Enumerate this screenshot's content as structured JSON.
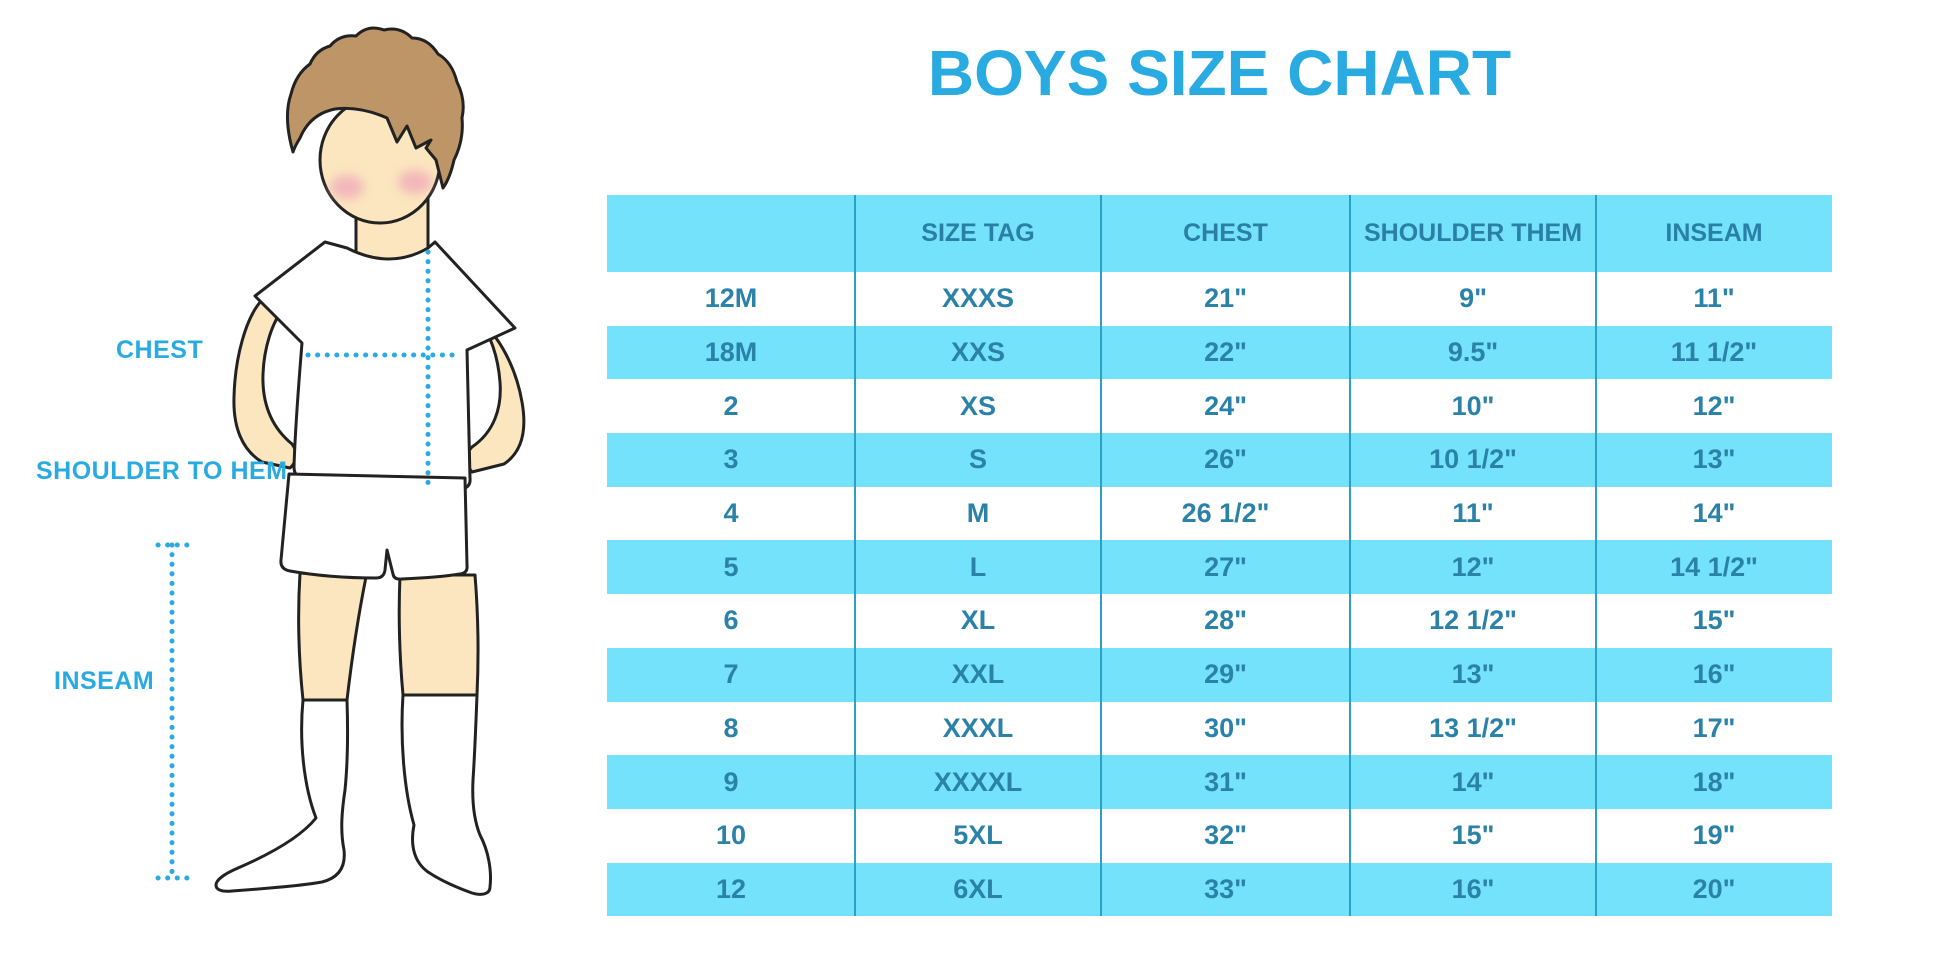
{
  "title": "BOYS SIZE CHART",
  "figure": {
    "labels": {
      "chest": "CHEST",
      "shoulder_to_hem": "SHOULDER TO HEM",
      "inseam": "INSEAM"
    },
    "description": "cartoon boy with brown hair, white t-shirt, white shorts and knee socks; dotted blue measurement lines for chest, shoulder-to-hem and inseam"
  },
  "colors": {
    "accent_blue": "#29ABE2",
    "table_row_blue": "#74E2FB",
    "table_text": "#2B82A8",
    "header_text": "#2A7FA6",
    "divider_blue": "#2AA0CB",
    "skin": "#FBE6BF",
    "hair": "#BD9566",
    "blush": "#F0A8BA",
    "outline": "#222222"
  },
  "chart_data": {
    "type": "table",
    "title": "BOYS SIZE CHART",
    "columns": [
      "",
      "SIZE TAG",
      "CHEST",
      "SHOULDER THEM",
      "INSEAM"
    ],
    "rows": [
      [
        "12M",
        "XXXS",
        "21\"",
        "9\"",
        "11\""
      ],
      [
        "18M",
        "XXS",
        "22\"",
        "9.5\"",
        "11 1/2\""
      ],
      [
        "2",
        "XS",
        "24\"",
        "10\"",
        "12\""
      ],
      [
        "3",
        "S",
        "26\"",
        "10 1/2\"",
        "13\""
      ],
      [
        "4",
        "M",
        "26 1/2\"",
        "11\"",
        "14\""
      ],
      [
        "5",
        "L",
        "27\"",
        "12\"",
        "14 1/2\""
      ],
      [
        "6",
        "XL",
        "28\"",
        "12 1/2\"",
        "15\""
      ],
      [
        "7",
        "XXL",
        "29\"",
        "13\"",
        "16\""
      ],
      [
        "8",
        "XXXL",
        "30\"",
        "13 1/2\"",
        "17\""
      ],
      [
        "9",
        "XXXXL",
        "31\"",
        "14\"",
        "18\""
      ],
      [
        "10",
        "5XL",
        "32\"",
        "15\"",
        "19\""
      ],
      [
        "12",
        "6XL",
        "33\"",
        "16\"",
        "20\""
      ]
    ],
    "zebra": "rows alternate white then light blue, starting with white",
    "grid": "4 thin blue vertical dividers, no horizontal rules, no outer border"
  }
}
